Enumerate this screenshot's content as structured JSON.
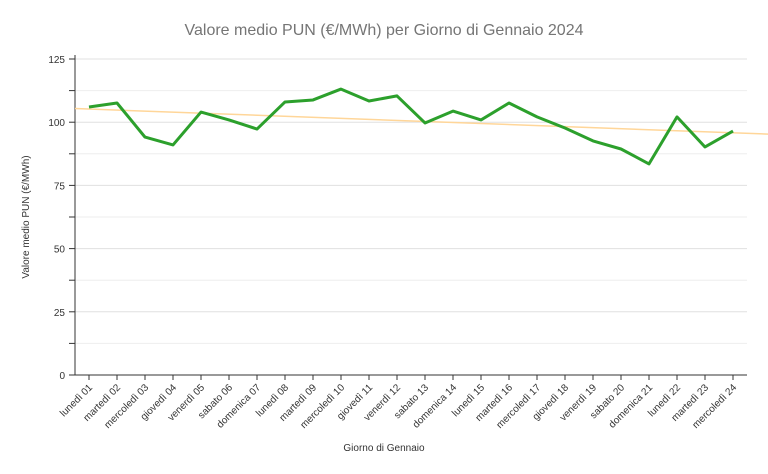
{
  "chart_data": {
    "type": "line",
    "title": "Valore medio PUN (€/MWh) per Giorno di Gennaio 2024",
    "xlabel": "Giorno di Gennaio",
    "ylabel": "Valore medio PUN (€/MWh)",
    "ylim": [
      0,
      125
    ],
    "yticks": [
      "0",
      "25",
      "50",
      "75",
      "100",
      "125"
    ],
    "grid": true,
    "categories": [
      "lunedì 01",
      "martedì 02",
      "mercoledì 03",
      "giovedì 04",
      "venerdì 05",
      "sabato 06",
      "domenica 07",
      "lunedì 08",
      "martedì 09",
      "mercoledì 10",
      "giovedì 11",
      "venerdì 12",
      "sabato 13",
      "domenica 14",
      "lunedì 15",
      "martedì 16",
      "mercoledì 17",
      "giovedì 18",
      "venerdì 19",
      "sabato 20",
      "domenica 21",
      "lunedì 22",
      "martedì 23",
      "mercoledì 24"
    ],
    "series": [
      {
        "values": [
          106.0,
          107.6,
          94.1,
          91.0,
          104.0,
          100.9,
          97.3,
          108.0,
          108.8,
          113.1,
          108.4,
          110.4,
          99.7,
          104.4,
          100.9,
          107.6,
          102.1,
          97.7,
          92.6,
          89.4,
          83.5,
          102.1,
          90.2,
          96.5
        ],
        "color": "#2ca02c"
      },
      {
        "type": "trend",
        "start": 105.2,
        "end": 95.8,
        "color": "#ffd699"
      }
    ]
  }
}
